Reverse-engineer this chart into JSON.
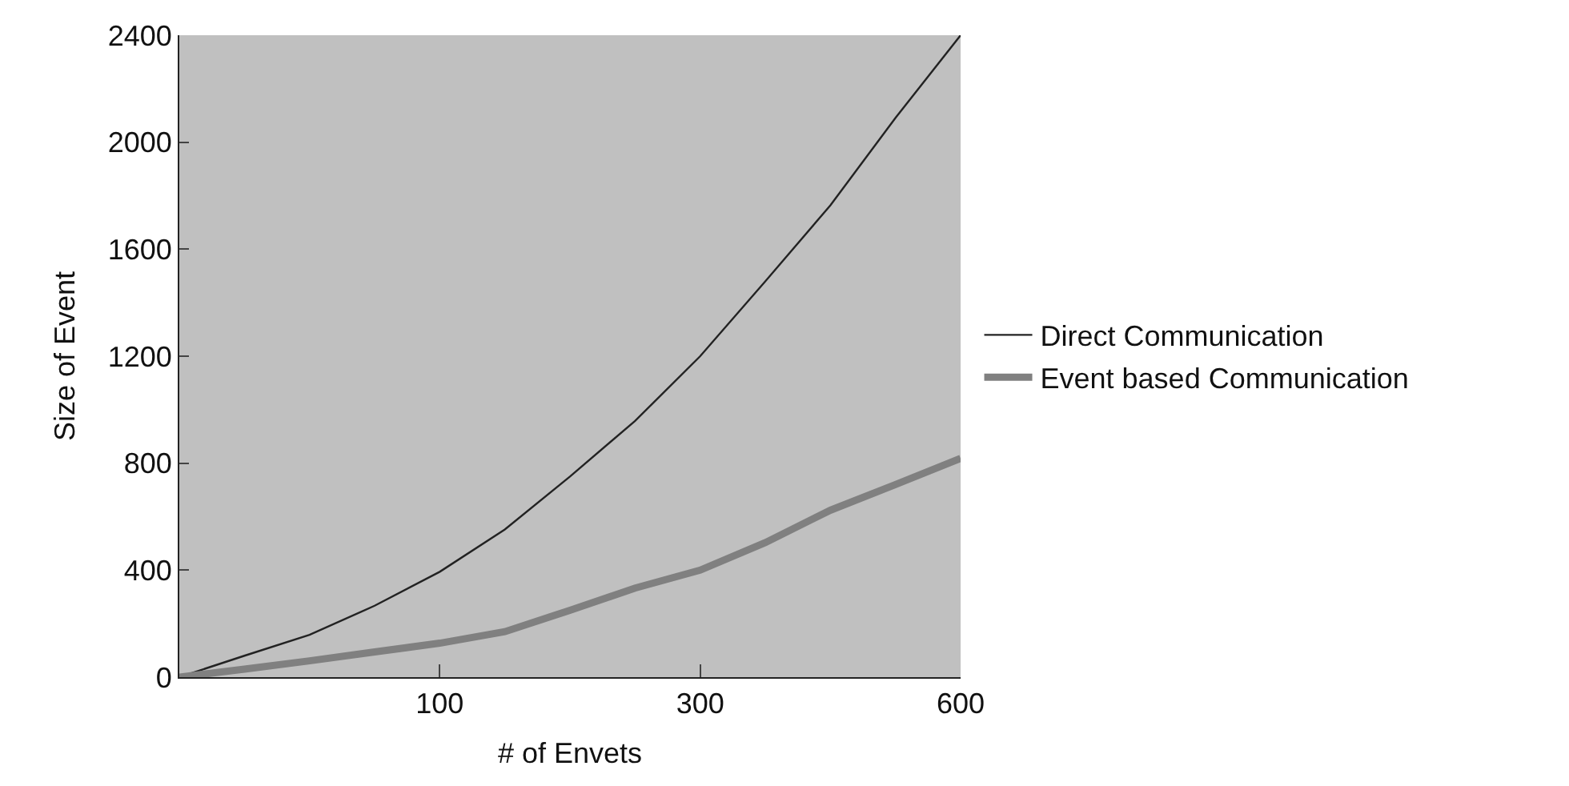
{
  "chart_data": {
    "type": "line",
    "xlabel": "# of Envets",
    "ylabel": "Size of Event",
    "categories": [
      null,
      null,
      null,
      null,
      "100",
      null,
      null,
      null,
      "300",
      null,
      null,
      null,
      "600"
    ],
    "ylim": [
      0,
      2400
    ],
    "yticks": [
      0,
      400,
      800,
      1200,
      1600,
      2000,
      2400
    ],
    "grid": false,
    "legend": "right",
    "marker": "none",
    "series": [
      {
        "name": "Direct Communication",
        "color": "#222222",
        "values": [
          0,
          80,
          158,
          267,
          394,
          552,
          750,
          958,
          1200,
          1480,
          1764,
          2091,
          2400
        ]
      },
      {
        "name": "Event based Communication",
        "color": "#808080",
        "values": [
          0,
          30,
          61,
          94,
          127,
          170,
          250,
          333,
          400,
          503,
          624,
          720,
          818
        ]
      }
    ]
  }
}
